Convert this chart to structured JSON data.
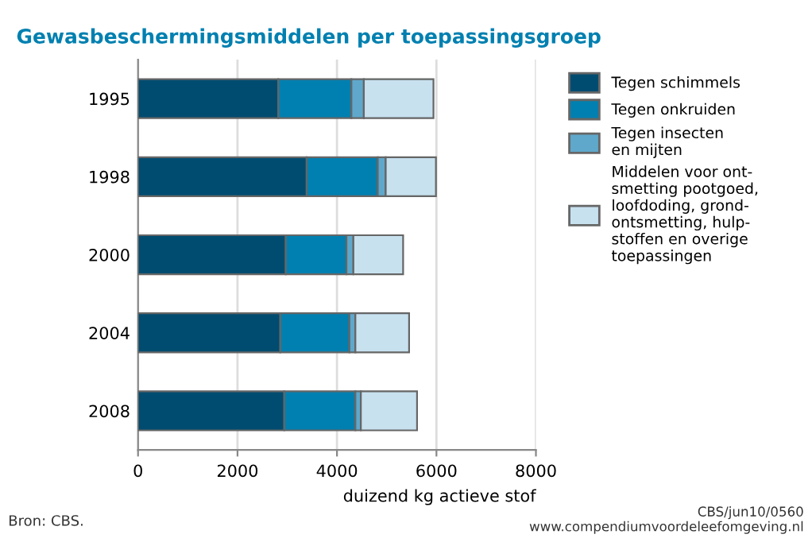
{
  "chart_data": {
    "type": "bar",
    "orientation": "horizontal",
    "stacked": true,
    "title": "Gewasbeschermingsmiddelen per toepassingsgroep",
    "xlabel": "duizend kg actieve stof",
    "categories": [
      "1995",
      "1998",
      "2000",
      "2004",
      "2008"
    ],
    "series": [
      {
        "name": "Tegen schimmels",
        "color": "#004c70",
        "values": [
          2820,
          3390,
          2970,
          2860,
          2940
        ]
      },
      {
        "name": "Tegen onkruiden",
        "color": "#0080b0",
        "values": [
          1470,
          1430,
          1220,
          1390,
          1430
        ]
      },
      {
        "name": "Tegen insecten\nen mijten",
        "color": "#5fa8cc",
        "values": [
          250,
          160,
          140,
          120,
          110
        ]
      },
      {
        "name": "Middelen voor ont-\nsmetting pootgoed,\nloofdoding, grond-\nontsmetting, hulp-\nstoffen en overige\ntoepassingen",
        "color": "#c7e1ef",
        "values": [
          1400,
          1010,
          1000,
          1080,
          1130
        ]
      }
    ],
    "xlim": [
      0,
      8000
    ],
    "xticks": [
      0,
      2000,
      4000,
      6000,
      8000
    ],
    "grid": "x",
    "legend": "right",
    "annotations": [
      "Bron: CBS.",
      "CBS/jun10/0560\nwww.compendiumvoordeleefomgeving.nl"
    ]
  }
}
